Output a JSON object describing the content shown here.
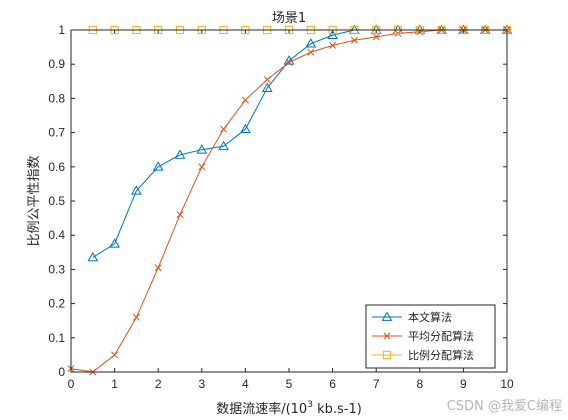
{
  "chart_data": {
    "type": "line",
    "title": "场景1",
    "xlabel_main": "数据流速率/(10",
    "xlabel_sup": "3",
    "xlabel_tail": " kb.s-1)",
    "ylabel": "比例公平性指数",
    "xlim": [
      0,
      10
    ],
    "ylim": [
      0,
      1
    ],
    "xticks": [
      0,
      1,
      2,
      3,
      4,
      5,
      6,
      7,
      8,
      9,
      10
    ],
    "yticks": [
      0,
      0.1,
      0.2,
      0.3,
      0.4,
      0.5,
      0.6,
      0.7,
      0.8,
      0.9,
      1
    ],
    "xtick_labels": [
      "0",
      "1",
      "2",
      "3",
      "4",
      "5",
      "6",
      "7",
      "8",
      "9",
      "10"
    ],
    "ytick_labels": [
      "0",
      "0.1",
      "0.2",
      "0.3",
      "0.4",
      "0.5",
      "0.6",
      "0.7",
      "0.8",
      "0.9",
      "1"
    ],
    "grid": false,
    "legend_position": "bottom-right",
    "series": [
      {
        "name": "本文算法",
        "color": "#0072BD",
        "marker": "triangle",
        "x": [
          0.5,
          1,
          1.5,
          2,
          2.5,
          3,
          3.5,
          4,
          4.5,
          5,
          5.5,
          6,
          6.5,
          7,
          7.5,
          8,
          8.5,
          9,
          9.5,
          10
        ],
        "y": [
          0.335,
          0.375,
          0.53,
          0.6,
          0.635,
          0.65,
          0.66,
          0.71,
          0.83,
          0.91,
          0.96,
          0.985,
          1.0,
          1.0,
          1.0,
          1.0,
          1.0,
          1.0,
          1.0,
          1.0
        ]
      },
      {
        "name": "平均分配算法",
        "color": "#D95319",
        "marker": "x",
        "x": [
          0,
          0.5,
          1,
          1.5,
          2,
          2.5,
          3,
          3.5,
          4,
          4.5,
          5,
          5.5,
          6,
          6.5,
          7,
          7.5,
          8,
          8.5,
          9,
          9.5,
          10
        ],
        "y": [
          0.01,
          0.0,
          0.05,
          0.16,
          0.305,
          0.46,
          0.6,
          0.71,
          0.795,
          0.855,
          0.905,
          0.935,
          0.955,
          0.97,
          0.98,
          0.99,
          0.995,
          1.0,
          1.0,
          1.0,
          1.0
        ]
      },
      {
        "name": "比例分配算法",
        "color": "#EDB120",
        "marker": "square",
        "x": [
          0.5,
          1,
          1.5,
          2,
          2.5,
          3,
          3.5,
          4,
          4.5,
          5,
          5.5,
          6,
          6.5,
          7,
          7.5,
          8,
          8.5,
          9,
          9.5,
          10
        ],
        "y": [
          1,
          1,
          1,
          1,
          1,
          1,
          1,
          1,
          1,
          1,
          1,
          1,
          1,
          1,
          1,
          1,
          1,
          1,
          1,
          1
        ]
      }
    ]
  },
  "watermark": "CSDN @我爱C编程"
}
